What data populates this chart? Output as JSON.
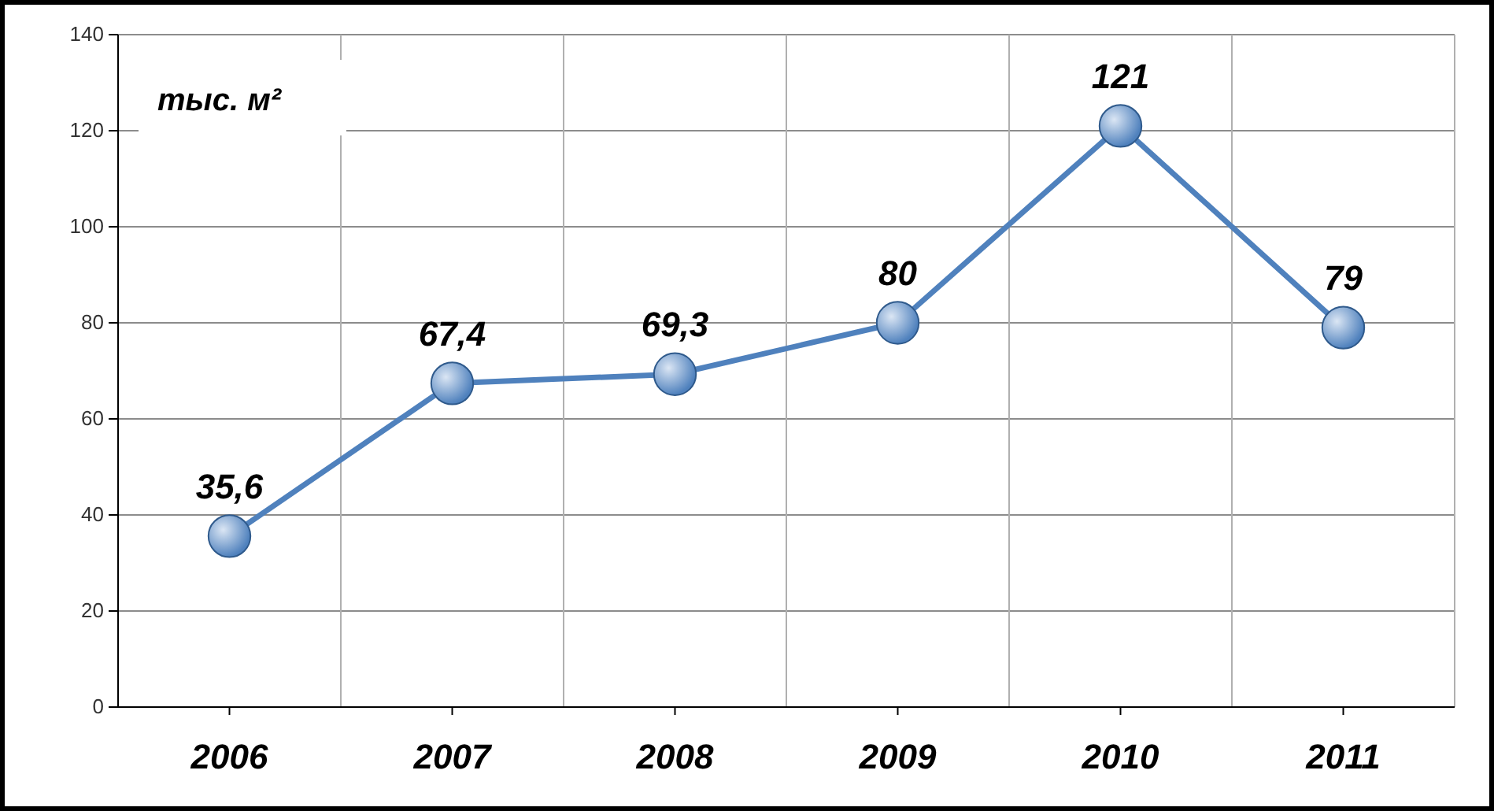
{
  "chart_data": {
    "type": "line",
    "ylabel": "тыс. м²",
    "categories": [
      "2006",
      "2007",
      "2008",
      "2009",
      "2010",
      "2011"
    ],
    "series": [
      {
        "color": "#4f81bd",
        "values": [
          35.6,
          67.4,
          69.3,
          80,
          121,
          79
        ],
        "value_labels": [
          "35,6",
          "67,4",
          "69,3",
          "80",
          "121",
          "79"
        ]
      }
    ],
    "ylim": [
      0,
      140
    ],
    "yticks": [
      0,
      20,
      40,
      60,
      80,
      100,
      120,
      140
    ],
    "grid": true,
    "marker": "circle"
  }
}
